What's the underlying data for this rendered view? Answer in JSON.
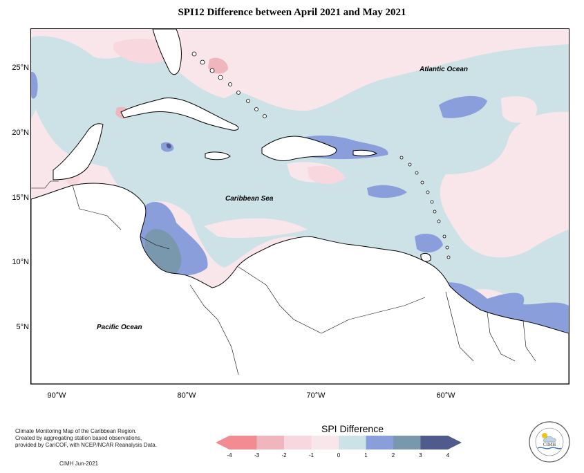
{
  "title": "SPI12 Difference between April 2021 and May 2021",
  "labels": {
    "atlantic": "Atlantic Ocean",
    "caribbean": "Caribbean Sea",
    "pacific": "Pacific Ocean"
  },
  "lat_ticks": [
    "25°N",
    "20°N",
    "15°N",
    "10°N",
    "5°N"
  ],
  "lon_ticks": [
    "90°W",
    "80°W",
    "70°W",
    "60°W"
  ],
  "footer": {
    "line1": "Climate Monitoring Map of the Caribbean Region.",
    "line2": "Created by aggregating station based observations,",
    "line3": "provided by CariCOF, with NCEP/NCAR Reanalysis Data.",
    "credit": "CIMH  Jun-2021"
  },
  "legend": {
    "title": "SPI Difference",
    "ticks": [
      "-4",
      "-3",
      "-2",
      "-1",
      "0",
      "1",
      "2",
      "3",
      "4"
    ],
    "colors": [
      "#f08c92",
      "#efb6bd",
      "#f8d7de",
      "#f9e6ea",
      "#cde2e6",
      "#8b9edc",
      "#7a98ad",
      "#505a8c"
    ]
  },
  "logo": {
    "text": "CIMH",
    "ring": "Caribbean Institute for Meteorology and Hydrology"
  }
}
